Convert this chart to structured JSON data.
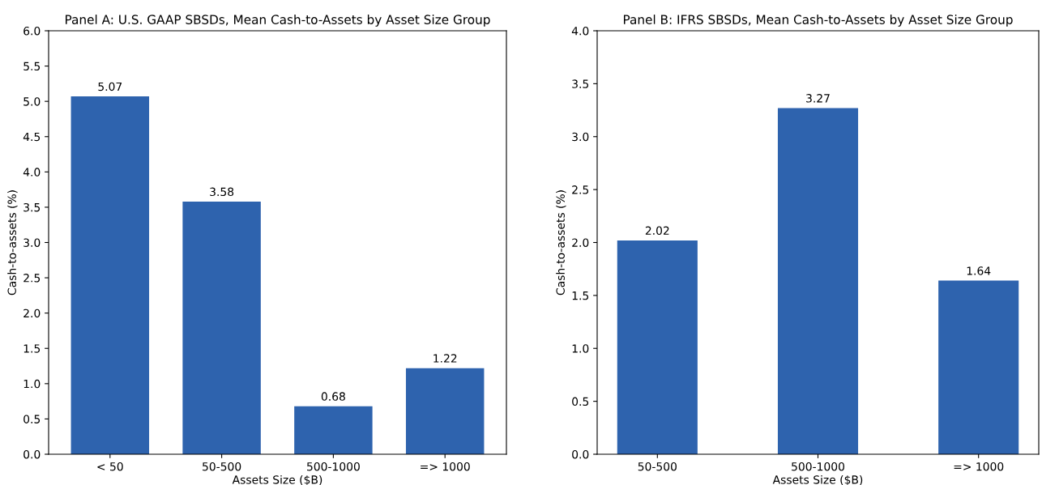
{
  "chart_data": [
    {
      "type": "bar",
      "title": "Panel A: U.S. GAAP SBSDs, Mean Cash-to-Assets by Asset Size Group",
      "xlabel": "Assets Size ($B)",
      "ylabel": "Cash-to-assets (%)",
      "categories": [
        "< 50",
        "50-500",
        "500-1000",
        "=> 1000"
      ],
      "values": [
        5.07,
        3.58,
        0.68,
        1.22
      ],
      "color": "#2e63ae",
      "ylim": [
        0,
        6
      ],
      "yticks": [
        {
          "value": 0,
          "label": "0.0"
        },
        0.5,
        {
          "value": 1,
          "label": "1.0"
        },
        1.5,
        {
          "value": 2,
          "label": "2.0"
        },
        2.5,
        {
          "value": 3,
          "label": "3.0"
        },
        3.5,
        {
          "value": 4,
          "label": "4.0"
        },
        4.5,
        {
          "value": 5,
          "label": "5.0"
        },
        5.5,
        {
          "value": 6,
          "label": "6.0"
        }
      ],
      "data_labels": true,
      "grid": false,
      "legend": false
    },
    {
      "type": "bar",
      "title": "Panel B: IFRS SBSDs, Mean Cash-to-Assets by Asset Size Group",
      "xlabel": "Assets Size ($B)",
      "ylabel": "Cash-to-assets (%)",
      "categories": [
        "50-500",
        "500-1000",
        "=> 1000"
      ],
      "values": [
        2.02,
        3.27,
        1.64
      ],
      "color": "#2e63ae",
      "ylim": [
        0,
        4
      ],
      "yticks": [
        {
          "value": 0,
          "label": "0.0"
        },
        0.5,
        {
          "value": 1,
          "label": "1.0"
        },
        1.5,
        {
          "value": 2,
          "label": "2.0"
        },
        2.5,
        {
          "value": 3,
          "label": "3.0"
        },
        3.5,
        {
          "value": 4,
          "label": "4.0"
        }
      ],
      "data_labels": true,
      "grid": false,
      "legend": false
    }
  ]
}
